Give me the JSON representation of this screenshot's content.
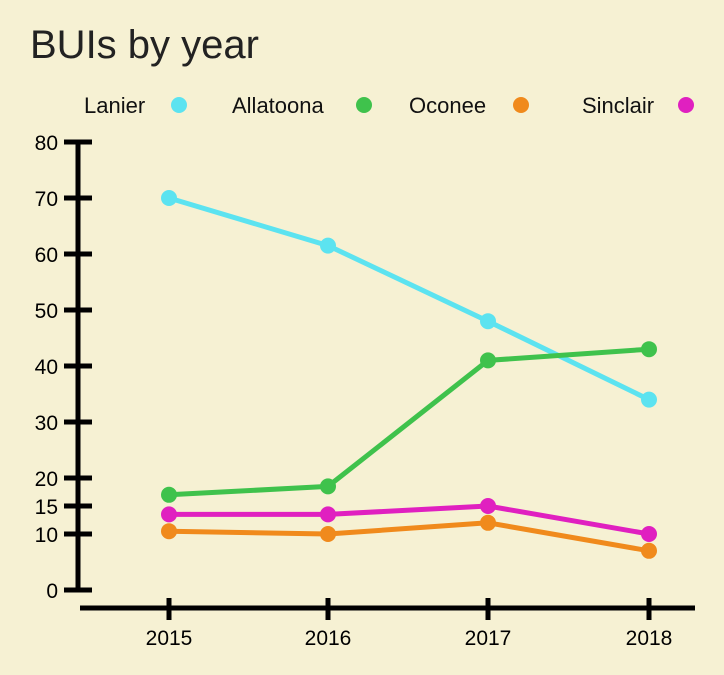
{
  "chart_data": {
    "type": "line",
    "title": "BUIs by year",
    "xlabel": "",
    "ylabel": "",
    "categories": [
      "2015",
      "2016",
      "2017",
      "2018"
    ],
    "yticks": [
      0,
      10,
      15,
      20,
      30,
      40,
      50,
      60,
      70,
      80
    ],
    "ylim": [
      0,
      80
    ],
    "legend_position": "top",
    "grid": false,
    "series": [
      {
        "name": "Lanier",
        "color": "#5ce3f0",
        "values": [
          70,
          61.5,
          48,
          34
        ]
      },
      {
        "name": "Allatoona",
        "color": "#3fc24c",
        "values": [
          17,
          18.5,
          41,
          43
        ]
      },
      {
        "name": "Oconee",
        "color": "#f08a1c",
        "values": [
          10.5,
          10,
          12,
          7
        ]
      },
      {
        "name": "Sinclair",
        "color": "#e020c0",
        "values": [
          13.5,
          13.5,
          15,
          10
        ]
      }
    ]
  }
}
